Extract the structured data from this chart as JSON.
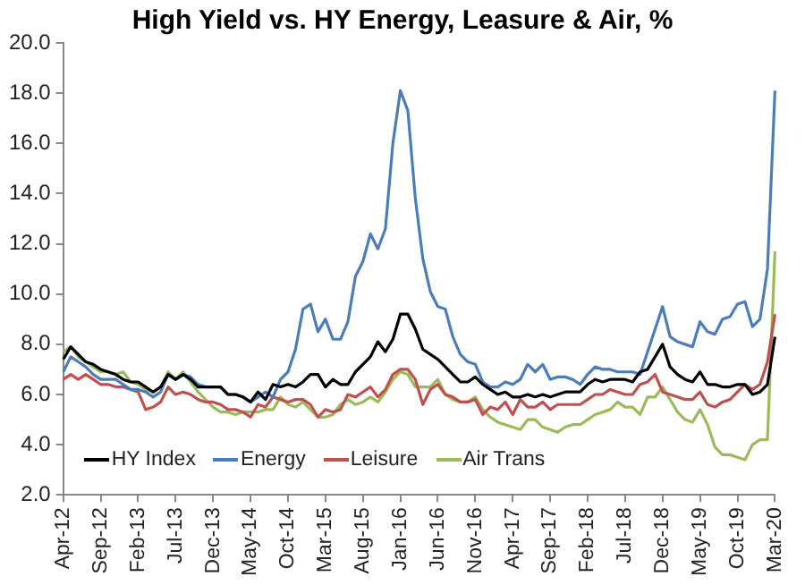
{
  "chart_data": {
    "type": "line",
    "title": "High Yield vs. HY Energy, Leasure & Air, %",
    "categories": [
      "Apr-12",
      null,
      null,
      null,
      null,
      "Sep-12",
      null,
      null,
      null,
      null,
      "Feb-13",
      null,
      null,
      null,
      null,
      "Jul-13",
      null,
      null,
      null,
      null,
      "Dec-13",
      null,
      null,
      null,
      null,
      "May-14",
      null,
      null,
      null,
      null,
      "Oct-14",
      null,
      null,
      null,
      null,
      "Mar-15",
      null,
      null,
      null,
      null,
      "Aug-15",
      null,
      null,
      null,
      null,
      "Jan-16",
      null,
      null,
      null,
      null,
      "Jun-16",
      null,
      null,
      null,
      null,
      "Nov-16",
      null,
      null,
      null,
      null,
      "Apr-17",
      null,
      null,
      null,
      null,
      "Sep-17",
      null,
      null,
      null,
      null,
      "Feb-18",
      null,
      null,
      null,
      null,
      "Jul-18",
      null,
      null,
      null,
      null,
      "Dec-18",
      null,
      null,
      null,
      null,
      "May-19",
      null,
      null,
      null,
      null,
      "Oct-19",
      null,
      null,
      null,
      null,
      "Mar-20"
    ],
    "series": [
      {
        "name": "HY Index",
        "color": "#000000",
        "values": [
          7.4,
          7.9,
          7.6,
          7.3,
          7.2,
          7.0,
          6.9,
          6.8,
          6.6,
          6.5,
          6.5,
          6.3,
          6.1,
          6.3,
          6.8,
          6.6,
          6.8,
          6.6,
          6.3,
          6.3,
          6.3,
          6.3,
          6.0,
          6.0,
          5.9,
          5.7,
          6.1,
          5.8,
          6.4,
          6.3,
          6.4,
          6.3,
          6.5,
          6.8,
          6.8,
          6.3,
          6.6,
          6.4,
          6.4,
          6.9,
          7.2,
          7.5,
          8.1,
          7.7,
          8.2,
          9.2,
          9.2,
          8.6,
          7.8,
          7.6,
          7.4,
          7.1,
          6.8,
          6.5,
          6.5,
          6.7,
          6.4,
          6.2,
          6.0,
          6.1,
          5.9,
          5.9,
          6.0,
          5.9,
          6.0,
          5.9,
          6.0,
          6.1,
          6.1,
          6.1,
          6.4,
          6.6,
          6.5,
          6.6,
          6.6,
          6.6,
          6.5,
          6.9,
          7.0,
          7.5,
          8.0,
          7.1,
          6.8,
          6.6,
          6.5,
          6.9,
          6.4,
          6.4,
          6.3,
          6.3,
          6.4,
          6.4,
          6.0,
          6.1,
          6.4,
          8.3
        ]
      },
      {
        "name": "Energy",
        "color": "#4a7ebb",
        "values": [
          6.9,
          7.5,
          7.3,
          7.1,
          6.8,
          6.6,
          6.6,
          6.6,
          6.4,
          6.2,
          6.2,
          6.1,
          5.9,
          6.1,
          6.8,
          6.6,
          6.8,
          6.7,
          6.4,
          6.3,
          6.3,
          6.3,
          6.0,
          6.0,
          5.9,
          5.7,
          5.9,
          6.1,
          5.9,
          6.6,
          6.9,
          7.8,
          9.4,
          9.6,
          8.5,
          9.0,
          8.2,
          8.2,
          8.9,
          10.7,
          11.3,
          12.4,
          11.8,
          12.6,
          16.0,
          18.1,
          17.3,
          13.8,
          11.4,
          10.1,
          9.5,
          9.4,
          8.3,
          7.6,
          7.3,
          7.2,
          6.5,
          6.3,
          6.3,
          6.5,
          6.4,
          6.6,
          7.2,
          6.9,
          7.2,
          6.6,
          6.7,
          6.7,
          6.6,
          6.4,
          6.8,
          7.1,
          7.0,
          7.0,
          6.9,
          6.9,
          6.9,
          6.8,
          7.7,
          8.6,
          9.5,
          8.3,
          8.1,
          8.0,
          7.9,
          8.9,
          8.5,
          8.4,
          9.0,
          9.1,
          9.6,
          9.7,
          8.7,
          9.0,
          11.0,
          18.1
        ]
      },
      {
        "name": "Leisure",
        "color": "#c0504d",
        "values": [
          6.6,
          6.8,
          6.6,
          6.8,
          6.6,
          6.4,
          6.4,
          6.3,
          6.3,
          6.2,
          6.1,
          5.4,
          5.5,
          5.7,
          6.3,
          6.0,
          6.1,
          6.0,
          5.8,
          5.7,
          5.7,
          5.6,
          5.4,
          5.4,
          5.3,
          5.1,
          5.6,
          5.5,
          5.9,
          5.8,
          5.7,
          5.8,
          5.8,
          5.6,
          5.1,
          5.4,
          5.3,
          5.4,
          6.0,
          5.9,
          6.1,
          6.3,
          5.9,
          6.2,
          6.8,
          7.0,
          7.0,
          6.6,
          5.6,
          6.2,
          6.4,
          6.0,
          5.9,
          5.7,
          5.7,
          5.8,
          5.2,
          5.5,
          5.4,
          5.7,
          5.2,
          5.8,
          5.5,
          5.5,
          5.7,
          5.4,
          5.6,
          5.6,
          5.6,
          5.6,
          5.8,
          6.0,
          6.0,
          6.2,
          6.1,
          6.0,
          6.0,
          6.4,
          6.5,
          6.8,
          6.1,
          6.0,
          5.9,
          5.8,
          5.8,
          6.1,
          5.6,
          5.5,
          5.7,
          5.8,
          6.1,
          6.4,
          6.2,
          6.4,
          7.3,
          9.2
        ]
      },
      {
        "name": "Air Trans",
        "color": "#9bbb59",
        "values": [
          7.7,
          7.9,
          7.5,
          7.3,
          7.1,
          6.9,
          6.9,
          6.8,
          6.9,
          6.5,
          6.4,
          6.2,
          6.1,
          6.3,
          6.9,
          6.6,
          6.9,
          6.5,
          6.1,
          5.8,
          5.5,
          5.3,
          5.3,
          5.2,
          5.3,
          5.3,
          5.3,
          5.4,
          5.4,
          5.9,
          5.6,
          5.5,
          5.7,
          5.4,
          5.1,
          5.1,
          5.2,
          5.6,
          5.8,
          5.6,
          5.7,
          5.9,
          5.7,
          6.1,
          6.6,
          6.9,
          6.8,
          6.3,
          6.3,
          6.3,
          6.6,
          6.0,
          5.8,
          5.7,
          5.7,
          5.9,
          5.4,
          5.1,
          4.9,
          4.8,
          4.7,
          4.6,
          5.0,
          5.0,
          4.7,
          4.6,
          4.5,
          4.7,
          4.8,
          4.8,
          5.0,
          5.2,
          5.3,
          5.4,
          5.7,
          5.5,
          5.5,
          5.2,
          5.9,
          5.9,
          6.3,
          5.8,
          5.3,
          5.0,
          4.9,
          5.4,
          4.8,
          3.9,
          3.6,
          3.6,
          3.5,
          3.4,
          4.0,
          4.2,
          4.2,
          11.7
        ]
      }
    ],
    "ylim": [
      2,
      20
    ],
    "yticks": [
      {
        "value": 2,
        "label": "2.0"
      },
      {
        "value": 4,
        "label": "4.0"
      },
      {
        "value": 6,
        "label": "6.0"
      },
      {
        "value": 8,
        "label": "8.0"
      },
      {
        "value": 10,
        "label": "10.0"
      },
      {
        "value": 12,
        "label": "12.0"
      },
      {
        "value": 14,
        "label": "14.0"
      },
      {
        "value": 16,
        "label": "16.0"
      },
      {
        "value": 18,
        "label": "18.0"
      },
      {
        "value": 20,
        "label": "20.0"
      }
    ],
    "grid": false,
    "legend": "bottom left",
    "marker": "none",
    "line_style": "solid"
  }
}
